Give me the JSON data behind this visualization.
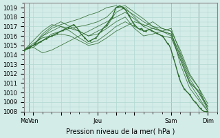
{
  "title": "",
  "xlabel": "Pression niveau de la mer( hPa )",
  "ylabel": "",
  "ylim": [
    1008,
    1019.5
  ],
  "yticks": [
    1008,
    1009,
    1010,
    1011,
    1012,
    1013,
    1014,
    1015,
    1016,
    1017,
    1018,
    1019
  ],
  "xtick_labels": [
    "Me",
    "Ven",
    "",
    "Jeu",
    "",
    "",
    "Sam",
    "",
    "Dim"
  ],
  "xtick_positions": [
    0,
    0.5,
    2,
    4,
    5,
    6,
    8,
    9,
    10
  ],
  "xlim": [
    0,
    10.5
  ],
  "bg_color": "#d4ece8",
  "grid_color": "#b0d8d0",
  "line_color": "#2d6a2d",
  "curves": [
    {
      "x": [
        0.0,
        0.5,
        1.0,
        1.5,
        2.0,
        2.5,
        3.0,
        3.5,
        4.0,
        4.5,
        5.0,
        5.5,
        6.0,
        6.5,
        7.0,
        7.5,
        8.0,
        8.5,
        9.0,
        9.5,
        10.0
      ],
      "y": [
        1014.5,
        1014.8,
        1015.5,
        1016.2,
        1016.5,
        1016.8,
        1017.0,
        1017.2,
        1017.5,
        1018.0,
        1019.0,
        1019.2,
        1018.5,
        1017.8,
        1017.0,
        1016.8,
        1016.5,
        1014.5,
        1012.0,
        1010.5,
        1008.2
      ]
    },
    {
      "x": [
        0.0,
        0.5,
        1.0,
        1.5,
        2.0,
        2.5,
        3.0,
        3.5,
        4.0,
        4.5,
        5.0,
        5.5,
        6.0,
        6.5,
        7.0,
        7.5,
        8.0,
        8.5,
        9.0,
        9.5,
        10.0
      ],
      "y": [
        1014.5,
        1015.0,
        1016.0,
        1016.8,
        1017.2,
        1017.5,
        1017.8,
        1018.2,
        1018.5,
        1019.0,
        1019.2,
        1018.8,
        1018.2,
        1017.5,
        1017.0,
        1016.5,
        1016.0,
        1013.5,
        1011.0,
        1009.5,
        1008.0
      ]
    },
    {
      "x": [
        0.0,
        0.5,
        1.0,
        1.5,
        2.0,
        2.5,
        3.0,
        3.5,
        4.0,
        4.5,
        5.0,
        5.5,
        6.0,
        6.5,
        7.0,
        7.5,
        8.0,
        8.5,
        9.0,
        9.5,
        10.0
      ],
      "y": [
        1014.5,
        1015.2,
        1015.8,
        1016.0,
        1016.2,
        1016.0,
        1015.5,
        1015.0,
        1015.2,
        1015.8,
        1016.5,
        1017.0,
        1017.5,
        1017.2,
        1016.8,
        1016.5,
        1016.2,
        1014.0,
        1011.5,
        1010.0,
        1008.2
      ]
    },
    {
      "x": [
        0.0,
        0.5,
        1.0,
        1.5,
        2.0,
        2.5,
        3.0,
        3.5,
        4.0,
        4.5,
        5.0,
        5.5,
        6.0,
        6.5,
        7.0,
        7.5,
        8.0,
        8.5,
        9.0,
        9.5,
        10.0
      ],
      "y": [
        1014.5,
        1014.8,
        1014.2,
        1014.5,
        1015.0,
        1015.5,
        1016.0,
        1016.5,
        1017.0,
        1017.5,
        1018.0,
        1018.5,
        1017.8,
        1017.0,
        1016.5,
        1016.0,
        1015.8,
        1013.5,
        1011.0,
        1010.2,
        1008.5
      ]
    },
    {
      "x": [
        0.0,
        0.5,
        1.0,
        1.5,
        2.0,
        2.5,
        3.0,
        3.5,
        4.0,
        4.5,
        5.0,
        5.5,
        6.0,
        6.5,
        7.0,
        7.5,
        8.0,
        8.5,
        9.0,
        9.5,
        10.0
      ],
      "y": [
        1014.5,
        1015.0,
        1016.2,
        1017.0,
        1017.5,
        1017.0,
        1016.5,
        1016.0,
        1016.2,
        1016.8,
        1017.5,
        1018.0,
        1016.8,
        1016.0,
        1016.2,
        1016.5,
        1016.8,
        1014.2,
        1011.8,
        1010.5,
        1008.8
      ]
    },
    {
      "x": [
        0.0,
        0.5,
        1.0,
        1.5,
        2.0,
        2.5,
        3.0,
        3.5,
        4.0,
        4.5,
        5.0,
        5.5,
        6.0,
        6.5,
        7.0,
        7.5,
        8.0,
        8.5,
        9.0,
        9.5,
        10.0
      ],
      "y": [
        1014.5,
        1015.5,
        1016.5,
        1017.2,
        1017.0,
        1016.5,
        1015.8,
        1015.2,
        1015.5,
        1016.2,
        1017.0,
        1017.5,
        1017.0,
        1016.5,
        1016.8,
        1016.5,
        1016.2,
        1013.8,
        1011.2,
        1010.0,
        1008.5
      ]
    },
    {
      "x": [
        0.0,
        0.5,
        1.0,
        1.5,
        2.0,
        2.5,
        3.0,
        3.5,
        4.0,
        4.5,
        5.0,
        5.5,
        6.0,
        6.5,
        7.0,
        7.5,
        8.0,
        8.5,
        9.0,
        9.5,
        10.0
      ],
      "y": [
        1014.5,
        1015.0,
        1016.0,
        1016.5,
        1017.0,
        1016.8,
        1016.5,
        1016.0,
        1016.5,
        1017.0,
        1018.5,
        1019.0,
        1018.0,
        1017.0,
        1017.5,
        1016.8,
        1016.5,
        1013.0,
        1010.5,
        1009.2,
        1008.0
      ]
    }
  ],
  "dense_x": [
    0.0,
    0.1,
    0.2,
    0.3,
    0.4,
    0.5,
    0.6,
    0.7,
    0.8,
    0.9,
    1.0,
    1.1,
    1.2,
    1.3,
    1.4,
    1.5,
    1.6,
    1.7,
    1.8,
    1.9,
    2.0,
    2.1,
    2.2,
    2.3,
    2.4,
    2.5,
    2.6,
    2.7,
    2.8,
    2.9,
    3.0,
    3.1,
    3.2,
    3.3,
    3.4,
    3.5,
    3.6,
    3.7,
    3.8,
    3.9,
    4.0,
    4.1,
    4.2,
    4.3,
    4.4,
    4.5,
    4.6,
    4.7,
    4.8,
    4.9,
    5.0,
    5.1,
    5.2,
    5.3,
    5.4,
    5.5,
    5.6,
    5.7,
    5.8,
    5.9,
    6.0,
    6.1,
    6.2,
    6.3,
    6.4,
    6.5,
    6.6,
    6.7,
    6.8,
    6.9,
    7.0,
    7.1,
    7.2,
    7.3,
    7.4,
    7.5,
    7.6,
    7.7,
    7.8,
    7.9,
    8.0,
    8.1,
    8.2,
    8.3,
    8.4,
    8.5,
    8.6,
    8.7,
    8.8,
    8.9,
    9.0,
    9.1,
    9.2,
    9.3,
    9.4,
    9.5,
    9.6,
    9.7,
    9.8,
    9.9,
    10.0
  ],
  "dense_y": [
    1014.5,
    1014.6,
    1014.7,
    1014.8,
    1014.9,
    1015.0,
    1015.1,
    1015.2,
    1015.3,
    1015.4,
    1015.5,
    1015.6,
    1015.7,
    1015.8,
    1015.9,
    1016.0,
    1016.1,
    1016.2,
    1016.3,
    1016.4,
    1016.5,
    1016.6,
    1016.7,
    1016.8,
    1016.9,
    1017.0,
    1017.1,
    1017.2,
    1017.0,
    1016.8,
    1016.5,
    1016.2,
    1016.0,
    1015.8,
    1015.6,
    1015.4,
    1015.5,
    1015.6,
    1015.7,
    1015.8,
    1016.0,
    1016.3,
    1016.5,
    1016.8,
    1017.0,
    1017.2,
    1017.5,
    1017.8,
    1018.0,
    1018.5,
    1019.0,
    1019.1,
    1019.2,
    1019.1,
    1019.0,
    1018.8,
    1018.5,
    1018.2,
    1017.8,
    1017.5,
    1017.2,
    1017.0,
    1016.8,
    1016.7,
    1016.8,
    1016.5,
    1016.5,
    1016.6,
    1016.7,
    1016.6,
    1016.5,
    1016.4,
    1016.3,
    1016.2,
    1016.1,
    1016.0,
    1015.8,
    1015.5,
    1015.2,
    1015.0,
    1014.5,
    1013.8,
    1013.2,
    1012.5,
    1011.8,
    1011.2,
    1010.8,
    1010.4,
    1010.2,
    1010.0,
    1009.8,
    1009.5,
    1009.2,
    1009.0,
    1008.8,
    1008.5,
    1008.3,
    1008.1,
    1008.0,
    1008.0,
    1008.0
  ],
  "vlines": [
    0.25,
    4.0,
    8.0,
    9.5
  ],
  "vline_color": "#888888"
}
